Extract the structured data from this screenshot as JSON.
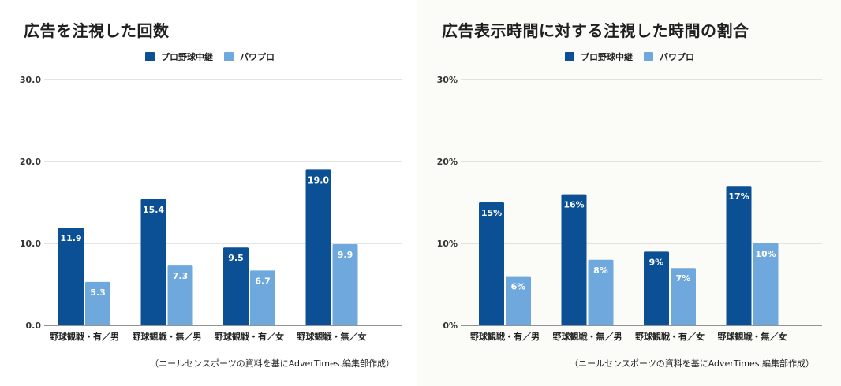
{
  "colors": {
    "series_dark": "#0b4f94",
    "series_light": "#6fa8dc",
    "grid": "#c8c8c8",
    "axis": "#555555"
  },
  "chart_data": [
    {
      "type": "bar",
      "title": "広告を注視した回数",
      "categories": [
        "野球観戦・有／男",
        "野球観戦・無／男",
        "野球観戦・有／女",
        "野球観戦・無／女"
      ],
      "series": [
        {
          "name": "プロ野球中継",
          "values": [
            11.9,
            15.4,
            9.5,
            19.0
          ],
          "labels": [
            "11.9",
            "15.4",
            "9.5",
            "19.0"
          ]
        },
        {
          "name": "パワプロ",
          "values": [
            5.3,
            7.3,
            6.7,
            9.9
          ],
          "labels": [
            "5.3",
            "7.3",
            "6.7",
            "9.9"
          ]
        }
      ],
      "ylim": [
        0,
        30
      ],
      "yticks": [
        0,
        10,
        20,
        30
      ],
      "ytick_labels": [
        "0.0",
        "10.0",
        "20.0",
        "30.0"
      ],
      "grid": true,
      "legend_position": "top-center",
      "note": "（ニールセンスポーツの資料を基にAdverTimes.編集部作成）"
    },
    {
      "type": "bar",
      "title": "広告表示時間に対する注視した時間の割合",
      "categories": [
        "野球観戦・有／男",
        "野球観戦・無／男",
        "野球観戦・有／女",
        "野球観戦・無／女"
      ],
      "series": [
        {
          "name": "プロ野球中継",
          "values": [
            15,
            16,
            9,
            17
          ],
          "labels": [
            "15%",
            "16%",
            "9%",
            "17%"
          ]
        },
        {
          "name": "パワプロ",
          "values": [
            6,
            8,
            7,
            10
          ],
          "labels": [
            "6%",
            "8%",
            "7%",
            "10%"
          ]
        }
      ],
      "ylim": [
        0,
        30
      ],
      "yticks": [
        0,
        10,
        20,
        30
      ],
      "ytick_labels": [
        "0%",
        "10%",
        "20%",
        "30%"
      ],
      "grid": true,
      "legend_position": "top-center",
      "note": "（ニールセンスポーツの資料を基にAdverTimes.編集部作成）"
    }
  ]
}
